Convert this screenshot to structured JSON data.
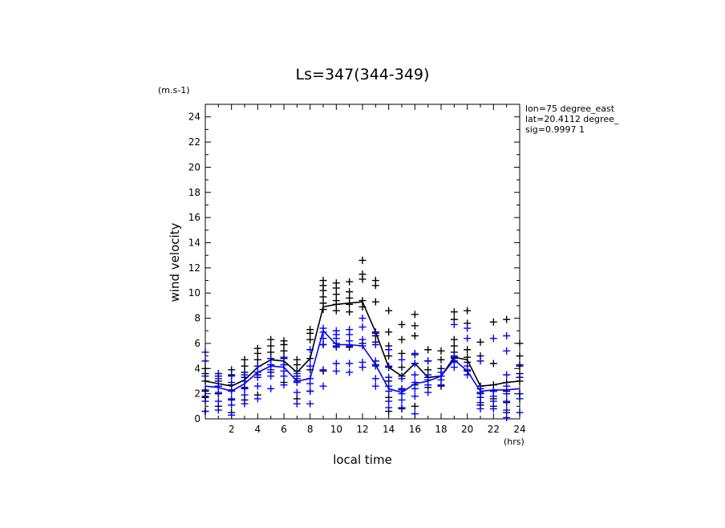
{
  "chart_data": {
    "type": "scatter",
    "title": "Ls=347(344-349)",
    "xlabel": "local time",
    "ylabel": "wind velocity",
    "x_unit": "(hrs)",
    "y_unit": "(m.s-1)",
    "xlim": [
      0,
      24
    ],
    "ylim": [
      0,
      25
    ],
    "x_ticks": [
      2,
      4,
      6,
      8,
      10,
      12,
      14,
      16,
      18,
      20,
      22,
      24
    ],
    "y_ticks": [
      0,
      2,
      4,
      6,
      8,
      10,
      12,
      14,
      16,
      18,
      20,
      22,
      24
    ],
    "grid": false,
    "info_lines": [
      "lon=75 degree_east",
      "lat=20.4112 degree_",
      "sig=0.9997 1"
    ],
    "colors": {
      "black_series": "#000000",
      "blue_series": "#0000ff"
    },
    "series": [
      {
        "color": "black",
        "mean": {
          "x": [
            0,
            1,
            2,
            3,
            4,
            5,
            6,
            7,
            8,
            9,
            10,
            11,
            12,
            13,
            14,
            15,
            16,
            17,
            18,
            19,
            20,
            21,
            22,
            23,
            24
          ],
          "y": [
            3.0,
            2.8,
            2.6,
            3.1,
            4.1,
            4.7,
            4.6,
            3.7,
            4.8,
            8.9,
            9.1,
            9.2,
            9.3,
            6.9,
            4.1,
            3.4,
            4.4,
            3.3,
            3.4,
            4.9,
            4.7,
            2.6,
            2.7,
            2.9,
            3.0
          ]
        },
        "points": [
          [
            0,
            0.6
          ],
          [
            0,
            1.7
          ],
          [
            0,
            2.2
          ],
          [
            0,
            3.0
          ],
          [
            0,
            3.6
          ],
          [
            0,
            4.0
          ],
          [
            1,
            1.0
          ],
          [
            1,
            2.0
          ],
          [
            1,
            2.6
          ],
          [
            1,
            3.0
          ],
          [
            1,
            3.4
          ],
          [
            1,
            3.6
          ],
          [
            2,
            0.5
          ],
          [
            2,
            1.5
          ],
          [
            2,
            2.3
          ],
          [
            2,
            2.7
          ],
          [
            2,
            3.5
          ],
          [
            2,
            3.9
          ],
          [
            3,
            1.5
          ],
          [
            3,
            2.5
          ],
          [
            3,
            3.3
          ],
          [
            3,
            3.7
          ],
          [
            3,
            4.2
          ],
          [
            3,
            4.7
          ],
          [
            4,
            1.9
          ],
          [
            4,
            3.5
          ],
          [
            4,
            4.2
          ],
          [
            4,
            4.7
          ],
          [
            4,
            5.2
          ],
          [
            4,
            5.6
          ],
          [
            5,
            3.7
          ],
          [
            5,
            4.3
          ],
          [
            5,
            4.8
          ],
          [
            5,
            5.3
          ],
          [
            5,
            5.8
          ],
          [
            5,
            6.3
          ],
          [
            6,
            2.9
          ],
          [
            6,
            4.3
          ],
          [
            6,
            4.8
          ],
          [
            6,
            5.4
          ],
          [
            6,
            5.9
          ],
          [
            6,
            6.2
          ],
          [
            7,
            1.6
          ],
          [
            7,
            3.0
          ],
          [
            7,
            3.4
          ],
          [
            7,
            3.8
          ],
          [
            7,
            4.3
          ],
          [
            7,
            4.7
          ],
          [
            8,
            2.2
          ],
          [
            8,
            3.9
          ],
          [
            8,
            4.8
          ],
          [
            8,
            6.3
          ],
          [
            8,
            6.8
          ],
          [
            8,
            7.1
          ],
          [
            9,
            3.8
          ],
          [
            9,
            5.9
          ],
          [
            9,
            8.7
          ],
          [
            9,
            9.2
          ],
          [
            9,
            9.7
          ],
          [
            9,
            10.2
          ],
          [
            9,
            10.6
          ],
          [
            9,
            11.0
          ],
          [
            10,
            5.8
          ],
          [
            10,
            8.6
          ],
          [
            10,
            9.1
          ],
          [
            10,
            9.4
          ],
          [
            10,
            9.9
          ],
          [
            10,
            10.4
          ],
          [
            10,
            10.8
          ],
          [
            11,
            5.7
          ],
          [
            11,
            8.5
          ],
          [
            11,
            9.1
          ],
          [
            11,
            9.6
          ],
          [
            11,
            10.1
          ],
          [
            11,
            10.9
          ],
          [
            12,
            6.0
          ],
          [
            12,
            8.9
          ],
          [
            12,
            9.4
          ],
          [
            12,
            11.1
          ],
          [
            12,
            11.5
          ],
          [
            12,
            12.6
          ],
          [
            13,
            4.3
          ],
          [
            13,
            6.1
          ],
          [
            13,
            6.6
          ],
          [
            13,
            6.9
          ],
          [
            13,
            9.3
          ],
          [
            13,
            10.6
          ],
          [
            13,
            11.0
          ],
          [
            14,
            0.6
          ],
          [
            14,
            1.7
          ],
          [
            14,
            3.0
          ],
          [
            14,
            4.1
          ],
          [
            14,
            5.0
          ],
          [
            14,
            5.8
          ],
          [
            14,
            6.9
          ],
          [
            14,
            8.6
          ],
          [
            15,
            0.8
          ],
          [
            15,
            2.3
          ],
          [
            15,
            3.4
          ],
          [
            15,
            4.1
          ],
          [
            15,
            5.2
          ],
          [
            15,
            6.3
          ],
          [
            15,
            7.5
          ],
          [
            16,
            1.0
          ],
          [
            16,
            2.7
          ],
          [
            16,
            4.4
          ],
          [
            16,
            5.1
          ],
          [
            16,
            6.6
          ],
          [
            16,
            7.4
          ],
          [
            16,
            8.3
          ],
          [
            17,
            2.5
          ],
          [
            17,
            3.3
          ],
          [
            17,
            3.9
          ],
          [
            17,
            4.6
          ],
          [
            17,
            5.5
          ],
          [
            18,
            2.6
          ],
          [
            18,
            3.4
          ],
          [
            18,
            4.0
          ],
          [
            18,
            4.7
          ],
          [
            18,
            5.4
          ],
          [
            19,
            4.6
          ],
          [
            19,
            4.9
          ],
          [
            19,
            5.3
          ],
          [
            19,
            5.8
          ],
          [
            19,
            6.3
          ],
          [
            19,
            7.9
          ],
          [
            19,
            8.5
          ],
          [
            20,
            3.8
          ],
          [
            20,
            4.5
          ],
          [
            20,
            4.9
          ],
          [
            20,
            5.5
          ],
          [
            20,
            7.6
          ],
          [
            20,
            8.6
          ],
          [
            21,
            1.1
          ],
          [
            21,
            1.7
          ],
          [
            21,
            2.1
          ],
          [
            21,
            2.6
          ],
          [
            21,
            5.0
          ],
          [
            21,
            6.1
          ],
          [
            22,
            1.0
          ],
          [
            22,
            1.6
          ],
          [
            22,
            2.2
          ],
          [
            22,
            2.7
          ],
          [
            22,
            4.4
          ],
          [
            22,
            7.7
          ],
          [
            23,
            0.5
          ],
          [
            23,
            1.3
          ],
          [
            23,
            2.2
          ],
          [
            23,
            2.9
          ],
          [
            23,
            7.9
          ],
          [
            24,
            2.0
          ],
          [
            24,
            3.0
          ],
          [
            24,
            3.6
          ],
          [
            24,
            4.2
          ],
          [
            24,
            5.0
          ],
          [
            24,
            6.0
          ]
        ]
      },
      {
        "color": "blue",
        "mean": {
          "x": [
            0,
            1,
            2,
            3,
            4,
            5,
            6,
            7,
            8,
            9,
            10,
            11,
            12,
            13,
            14,
            15,
            16,
            17,
            18,
            19,
            20,
            21,
            22,
            23,
            24
          ],
          "y": [
            2.6,
            2.5,
            2.2,
            2.8,
            3.7,
            4.2,
            4.1,
            3.0,
            3.2,
            7.0,
            5.9,
            5.9,
            5.8,
            4.3,
            2.4,
            2.1,
            2.8,
            3.0,
            3.4,
            4.7,
            3.8,
            2.2,
            2.3,
            2.3,
            2.4
          ]
        },
        "points": [
          [
            0,
            0.6
          ],
          [
            0,
            1.4
          ],
          [
            0,
            1.8
          ],
          [
            0,
            2.3
          ],
          [
            0,
            3.4
          ],
          [
            0,
            4.6
          ],
          [
            0,
            5.3
          ],
          [
            1,
            0.7
          ],
          [
            1,
            1.4
          ],
          [
            1,
            2.1
          ],
          [
            1,
            2.6
          ],
          [
            1,
            3.2
          ],
          [
            1,
            3.6
          ],
          [
            2,
            0.3
          ],
          [
            2,
            1.1
          ],
          [
            2,
            1.6
          ],
          [
            2,
            2.2
          ],
          [
            2,
            2.9
          ],
          [
            2,
            3.4
          ],
          [
            3,
            1.2
          ],
          [
            3,
            1.9
          ],
          [
            3,
            2.4
          ],
          [
            3,
            3.0
          ],
          [
            3,
            3.5
          ],
          [
            4,
            1.6
          ],
          [
            4,
            2.6
          ],
          [
            4,
            3.3
          ],
          [
            4,
            3.7
          ],
          [
            4,
            4.2
          ],
          [
            5,
            2.4
          ],
          [
            5,
            3.4
          ],
          [
            5,
            3.9
          ],
          [
            5,
            4.3
          ],
          [
            5,
            4.8
          ],
          [
            6,
            2.7
          ],
          [
            6,
            3.4
          ],
          [
            6,
            3.8
          ],
          [
            6,
            4.3
          ],
          [
            6,
            4.9
          ],
          [
            7,
            1.2
          ],
          [
            7,
            2.1
          ],
          [
            7,
            2.9
          ],
          [
            7,
            3.2
          ],
          [
            7,
            3.6
          ],
          [
            8,
            1.2
          ],
          [
            8,
            2.2
          ],
          [
            8,
            2.8
          ],
          [
            8,
            3.2
          ],
          [
            8,
            4.2
          ],
          [
            8,
            5.5
          ],
          [
            9,
            2.6
          ],
          [
            9,
            3.9
          ],
          [
            9,
            5.9
          ],
          [
            9,
            6.4
          ],
          [
            9,
            6.9
          ],
          [
            9,
            7.2
          ],
          [
            10,
            3.8
          ],
          [
            10,
            4.4
          ],
          [
            10,
            5.7
          ],
          [
            10,
            6.0
          ],
          [
            10,
            6.4
          ],
          [
            10,
            6.7
          ],
          [
            10,
            7.0
          ],
          [
            11,
            3.7
          ],
          [
            11,
            4.4
          ],
          [
            11,
            5.8
          ],
          [
            11,
            6.2
          ],
          [
            11,
            6.7
          ],
          [
            11,
            7.1
          ],
          [
            12,
            4.1
          ],
          [
            12,
            4.5
          ],
          [
            12,
            5.8
          ],
          [
            12,
            6.3
          ],
          [
            12,
            7.3
          ],
          [
            12,
            8.0
          ],
          [
            13,
            2.6
          ],
          [
            13,
            3.2
          ],
          [
            13,
            4.2
          ],
          [
            13,
            4.6
          ],
          [
            13,
            5.9
          ],
          [
            13,
            6.8
          ],
          [
            14,
            0.9
          ],
          [
            14,
            1.4
          ],
          [
            14,
            2.2
          ],
          [
            14,
            2.6
          ],
          [
            14,
            3.3
          ],
          [
            14,
            4.2
          ],
          [
            14,
            5.5
          ],
          [
            15,
            0.9
          ],
          [
            15,
            1.5
          ],
          [
            15,
            2.0
          ],
          [
            15,
            2.4
          ],
          [
            15,
            3.2
          ],
          [
            15,
            4.7
          ],
          [
            16,
            0.4
          ],
          [
            16,
            1.8
          ],
          [
            16,
            2.4
          ],
          [
            16,
            2.9
          ],
          [
            16,
            3.5
          ],
          [
            16,
            4.4
          ],
          [
            16,
            5.2
          ],
          [
            17,
            2.1
          ],
          [
            17,
            2.7
          ],
          [
            17,
            3.1
          ],
          [
            17,
            3.5
          ],
          [
            17,
            4.6
          ],
          [
            18,
            2.7
          ],
          [
            18,
            3.1
          ],
          [
            18,
            3.4
          ],
          [
            18,
            3.7
          ],
          [
            19,
            4.1
          ],
          [
            19,
            4.5
          ],
          [
            19,
            4.8
          ],
          [
            19,
            5.0
          ],
          [
            19,
            7.5
          ],
          [
            20,
            3.5
          ],
          [
            20,
            3.9
          ],
          [
            20,
            4.2
          ],
          [
            20,
            6.4
          ],
          [
            20,
            7.2
          ],
          [
            21,
            0.8
          ],
          [
            21,
            1.3
          ],
          [
            21,
            1.7
          ],
          [
            21,
            2.0
          ],
          [
            21,
            2.4
          ],
          [
            21,
            4.6
          ],
          [
            22,
            0.8
          ],
          [
            22,
            1.4
          ],
          [
            22,
            1.8
          ],
          [
            22,
            2.2
          ],
          [
            22,
            6.4
          ],
          [
            23,
            0.1
          ],
          [
            23,
            0.7
          ],
          [
            23,
            1.4
          ],
          [
            23,
            2.0
          ],
          [
            23,
            2.6
          ],
          [
            23,
            3.5
          ],
          [
            23,
            5.4
          ],
          [
            23,
            6.6
          ],
          [
            24,
            0.5
          ],
          [
            24,
            1.6
          ],
          [
            24,
            2.0
          ],
          [
            24,
            3.3
          ],
          [
            24,
            4.3
          ]
        ]
      }
    ]
  }
}
